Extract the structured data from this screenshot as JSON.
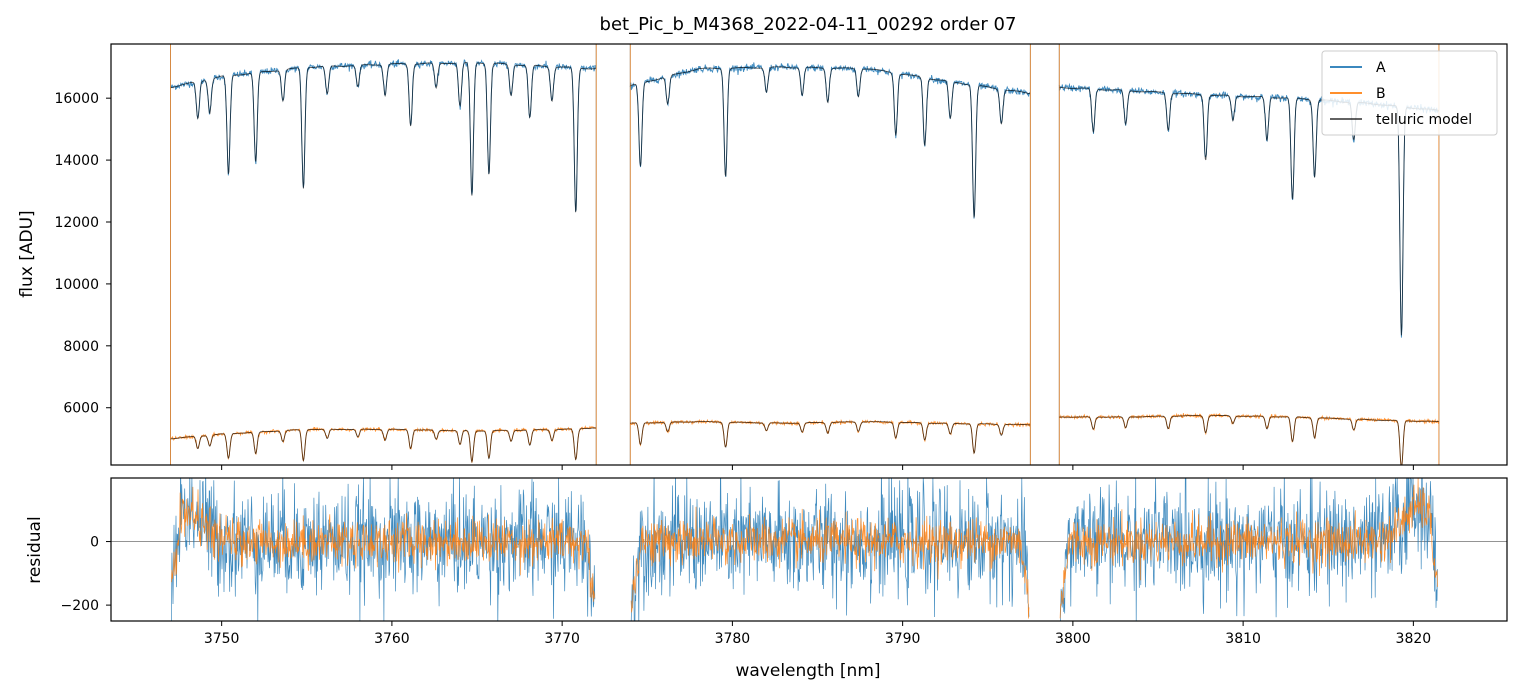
{
  "chart_data": [
    {
      "type": "line",
      "panel": "flux",
      "title": "bet_Pic_b_M4368_2022-04-11_00292  order 07",
      "xlabel": "",
      "ylabel": "flux [ADU]",
      "xlim": [
        3743.5,
        3825.5
      ],
      "ylim": [
        4150,
        17750
      ],
      "yticks": [
        6000,
        8000,
        10000,
        12000,
        14000,
        16000
      ],
      "xticks": [
        3750,
        3760,
        3770,
        3780,
        3790,
        3800,
        3810,
        3820
      ],
      "legend_position": "top-right",
      "series": [
        {
          "name": "A",
          "color": "#1f77b4",
          "segments": [
            {
              "x_start": 3747.0,
              "x_end": 3772.0,
              "continuum": [
                [
                  3747.0,
                  16350
                ],
                [
                  3750.0,
                  16700
                ],
                [
                  3755.0,
                  17000
                ],
                [
                  3760.0,
                  17100
                ],
                [
                  3765.0,
                  17150
                ],
                [
                  3770.0,
                  17000
                ],
                [
                  3772.0,
                  16950
                ]
              ]
            },
            {
              "x_start": 3774.0,
              "x_end": 3797.5,
              "continuum": [
                [
                  3774.0,
                  16400
                ],
                [
                  3778.0,
                  16950
                ],
                [
                  3783.0,
                  17000
                ],
                [
                  3788.0,
                  16950
                ],
                [
                  3792.0,
                  16600
                ],
                [
                  3797.5,
                  16150
                ]
              ]
            },
            {
              "x_start": 3799.2,
              "x_end": 3821.5,
              "continuum": [
                [
                  3799.2,
                  16350
                ],
                [
                  3803.0,
                  16250
                ],
                [
                  3808.0,
                  16100
                ],
                [
                  3813.0,
                  16000
                ],
                [
                  3818.0,
                  15800
                ],
                [
                  3821.5,
                  15600
                ]
              ]
            }
          ],
          "absorption_lines": [
            [
              3748.6,
              1200
            ],
            [
              3749.3,
              1100
            ],
            [
              3750.4,
              3200
            ],
            [
              3752.0,
              2900
            ],
            [
              3753.6,
              1000
            ],
            [
              3754.8,
              3900
            ],
            [
              3756.2,
              900
            ],
            [
              3758.0,
              700
            ],
            [
              3759.6,
              1000
            ],
            [
              3761.1,
              2000
            ],
            [
              3762.6,
              800
            ],
            [
              3764.0,
              1400
            ],
            [
              3764.7,
              4300
            ],
            [
              3765.7,
              3600
            ],
            [
              3767.0,
              1000
            ],
            [
              3768.1,
              1700
            ],
            [
              3769.4,
              1100
            ],
            [
              3770.8,
              4700
            ],
            [
              3774.6,
              2700
            ],
            [
              3776.2,
              900
            ],
            [
              3779.6,
              3500
            ],
            [
              3782.0,
              800
            ],
            [
              3784.1,
              900
            ],
            [
              3785.6,
              1100
            ],
            [
              3787.4,
              900
            ],
            [
              3789.6,
              2000
            ],
            [
              3791.3,
              2200
            ],
            [
              3792.8,
              1200
            ],
            [
              3794.2,
              4300
            ],
            [
              3795.8,
              1100
            ],
            [
              3801.2,
              1400
            ],
            [
              3803.1,
              1100
            ],
            [
              3805.6,
              1200
            ],
            [
              3807.8,
              2100
            ],
            [
              3809.4,
              800
            ],
            [
              3811.4,
              1400
            ],
            [
              3812.9,
              3300
            ],
            [
              3814.2,
              2500
            ],
            [
              3816.5,
              1200
            ],
            [
              3819.3,
              7400
            ]
          ]
        },
        {
          "name": "B",
          "color": "#ff7f0e",
          "segments": [
            {
              "x_start": 3747.0,
              "x_end": 3772.0,
              "continuum": [
                [
                  3747.0,
                  5000
                ],
                [
                  3750.0,
                  5150
                ],
                [
                  3755.0,
                  5300
                ],
                [
                  3760.0,
                  5300
                ],
                [
                  3765.0,
                  5250
                ],
                [
                  3770.0,
                  5300
                ],
                [
                  3772.0,
                  5350
                ]
              ]
            },
            {
              "x_start": 3774.0,
              "x_end": 3797.5,
              "continuum": [
                [
                  3774.0,
                  5500
                ],
                [
                  3778.0,
                  5550
                ],
                [
                  3783.0,
                  5500
                ],
                [
                  3788.0,
                  5550
                ],
                [
                  3792.0,
                  5500
                ],
                [
                  3797.5,
                  5450
                ]
              ]
            },
            {
              "x_start": 3799.2,
              "x_end": 3821.5,
              "continuum": [
                [
                  3799.2,
                  5700
                ],
                [
                  3803.0,
                  5700
                ],
                [
                  3808.0,
                  5750
                ],
                [
                  3813.0,
                  5700
                ],
                [
                  3818.0,
                  5600
                ],
                [
                  3821.5,
                  5550
                ]
              ]
            }
          ],
          "absorption_lines": [
            [
              3748.6,
              400
            ],
            [
              3749.3,
              350
            ],
            [
              3750.4,
              800
            ],
            [
              3752.0,
              700
            ],
            [
              3753.6,
              350
            ],
            [
              3754.8,
              1000
            ],
            [
              3756.2,
              300
            ],
            [
              3758.0,
              250
            ],
            [
              3759.6,
              350
            ],
            [
              3761.1,
              600
            ],
            [
              3762.6,
              300
            ],
            [
              3764.0,
              450
            ],
            [
              3764.7,
              1000
            ],
            [
              3765.7,
              900
            ],
            [
              3767.0,
              350
            ],
            [
              3768.1,
              500
            ],
            [
              3769.4,
              350
            ],
            [
              3770.8,
              1000
            ],
            [
              3774.6,
              700
            ],
            [
              3776.2,
              300
            ],
            [
              3779.6,
              800
            ],
            [
              3782.0,
              250
            ],
            [
              3784.1,
              300
            ],
            [
              3785.6,
              350
            ],
            [
              3787.4,
              300
            ],
            [
              3789.6,
              500
            ],
            [
              3791.3,
              550
            ],
            [
              3792.8,
              350
            ],
            [
              3794.2,
              950
            ],
            [
              3795.8,
              350
            ],
            [
              3801.2,
              400
            ],
            [
              3803.1,
              350
            ],
            [
              3805.6,
              400
            ],
            [
              3807.8,
              550
            ],
            [
              3809.4,
              250
            ],
            [
              3811.4,
              400
            ],
            [
              3812.9,
              800
            ],
            [
              3814.2,
              650
            ],
            [
              3816.5,
              350
            ],
            [
              3819.3,
              1500
            ]
          ]
        },
        {
          "name": "telluric model",
          "color": "#000000",
          "role": "model (overplotted on A and B)"
        }
      ]
    },
    {
      "type": "line",
      "panel": "residual",
      "title": "",
      "xlabel": "wavelength [nm]",
      "ylabel": "residual",
      "xlim": [
        3743.5,
        3825.5
      ],
      "ylim": [
        -250,
        200
      ],
      "yticks": [
        -200,
        0
      ],
      "xticks": [
        3750,
        3760,
        3770,
        3780,
        3790,
        3800,
        3810,
        3820
      ],
      "zero_line": 0,
      "series": [
        {
          "name": "A",
          "color": "#1f77b4",
          "noise_std": 85,
          "edge_bump": [
            [
              3748.0,
              100
            ],
            [
              3820.3,
              120
            ]
          ]
        },
        {
          "name": "B",
          "color": "#ff7f0e",
          "noise_std": 40,
          "edge_bump": [
            [
              3748.0,
              90
            ],
            [
              3820.3,
              110
            ]
          ]
        }
      ]
    }
  ]
}
